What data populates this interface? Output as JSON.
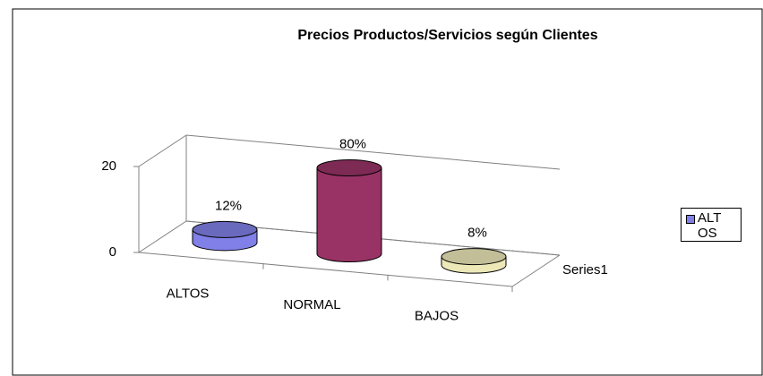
{
  "chart_data": {
    "type": "cylinder3d",
    "title": "Precios Productos/Servicios según Clientes",
    "categories": [
      "ALTOS",
      "NORMAL",
      "BAJOS"
    ],
    "series": [
      {
        "name": "Series1",
        "values": [
          3,
          20,
          2
        ],
        "value_labels": [
          "12%",
          "80%",
          "8%"
        ]
      }
    ],
    "colors": [
      "#8080e8",
      "#993366",
      "#ece8b8"
    ],
    "legend": [
      "ALTOS"
    ],
    "legend_position": "right",
    "ylim": [
      0,
      20
    ],
    "yticks": [
      0,
      20
    ],
    "grid": true
  }
}
